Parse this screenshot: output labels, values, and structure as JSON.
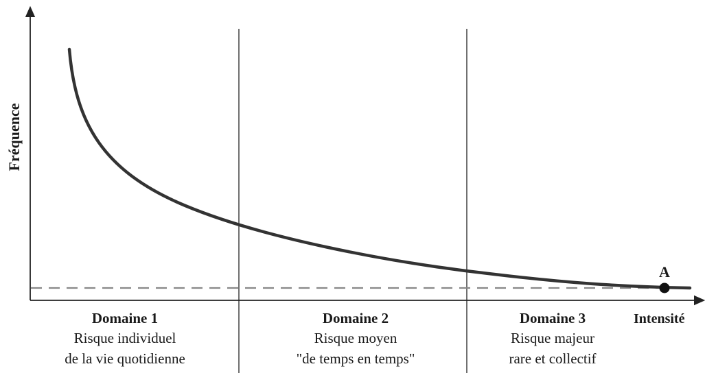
{
  "axes": {
    "ylabel": "Fréquence",
    "xlabel": "Intensité"
  },
  "point": {
    "label": "A"
  },
  "domains": [
    {
      "title": "Domaine 1",
      "line1": "Risque individuel",
      "line2": "de la vie quotidienne"
    },
    {
      "title": "Domaine 2",
      "line1": "Risque moyen",
      "line2": "\"de temps en temps\""
    },
    {
      "title": "Domaine 3",
      "line1": "Risque majeur",
      "line2": "rare et collectif"
    }
  ],
  "colors": {
    "curve": "#333333",
    "axis": "#222222",
    "divider": "#333333",
    "threshold": "#888888",
    "point": "#111111"
  }
}
